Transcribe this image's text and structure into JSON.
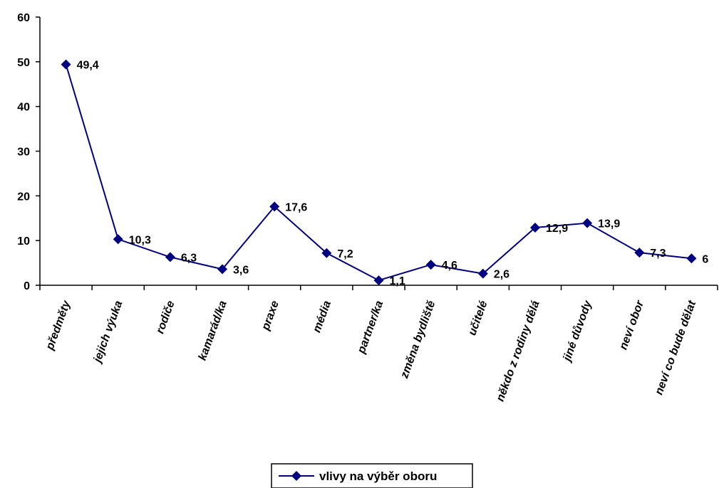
{
  "chart_data": {
    "type": "line",
    "categories": [
      "předměty",
      "jejich výuka",
      "rodiče",
      "kamarád/ka",
      "praxe",
      "média",
      "partner/ka",
      "změna bydliště",
      "učitelé",
      "někdo z rodiny dělá",
      "jiné důvody",
      "neví obor",
      "neví co bude dělat"
    ],
    "series": [
      {
        "name": "vlivy na výběr oboru",
        "values": [
          49.4,
          10.3,
          6.3,
          3.6,
          17.6,
          7.2,
          1.1,
          4.6,
          2.6,
          12.9,
          13.9,
          7.3,
          6
        ],
        "labels": [
          "49,4",
          "10,3",
          "6,3",
          "3,6",
          "17,6",
          "7,2",
          "1,1",
          "4,6",
          "2,6",
          "12,9",
          "13,9",
          "7,3",
          "6"
        ],
        "color": "#000080"
      }
    ],
    "yticks": [
      "0",
      "10",
      "20",
      "30",
      "40",
      "50",
      "60"
    ],
    "ylim": [
      0,
      60
    ],
    "grid": false,
    "legend": "bottom-center"
  }
}
